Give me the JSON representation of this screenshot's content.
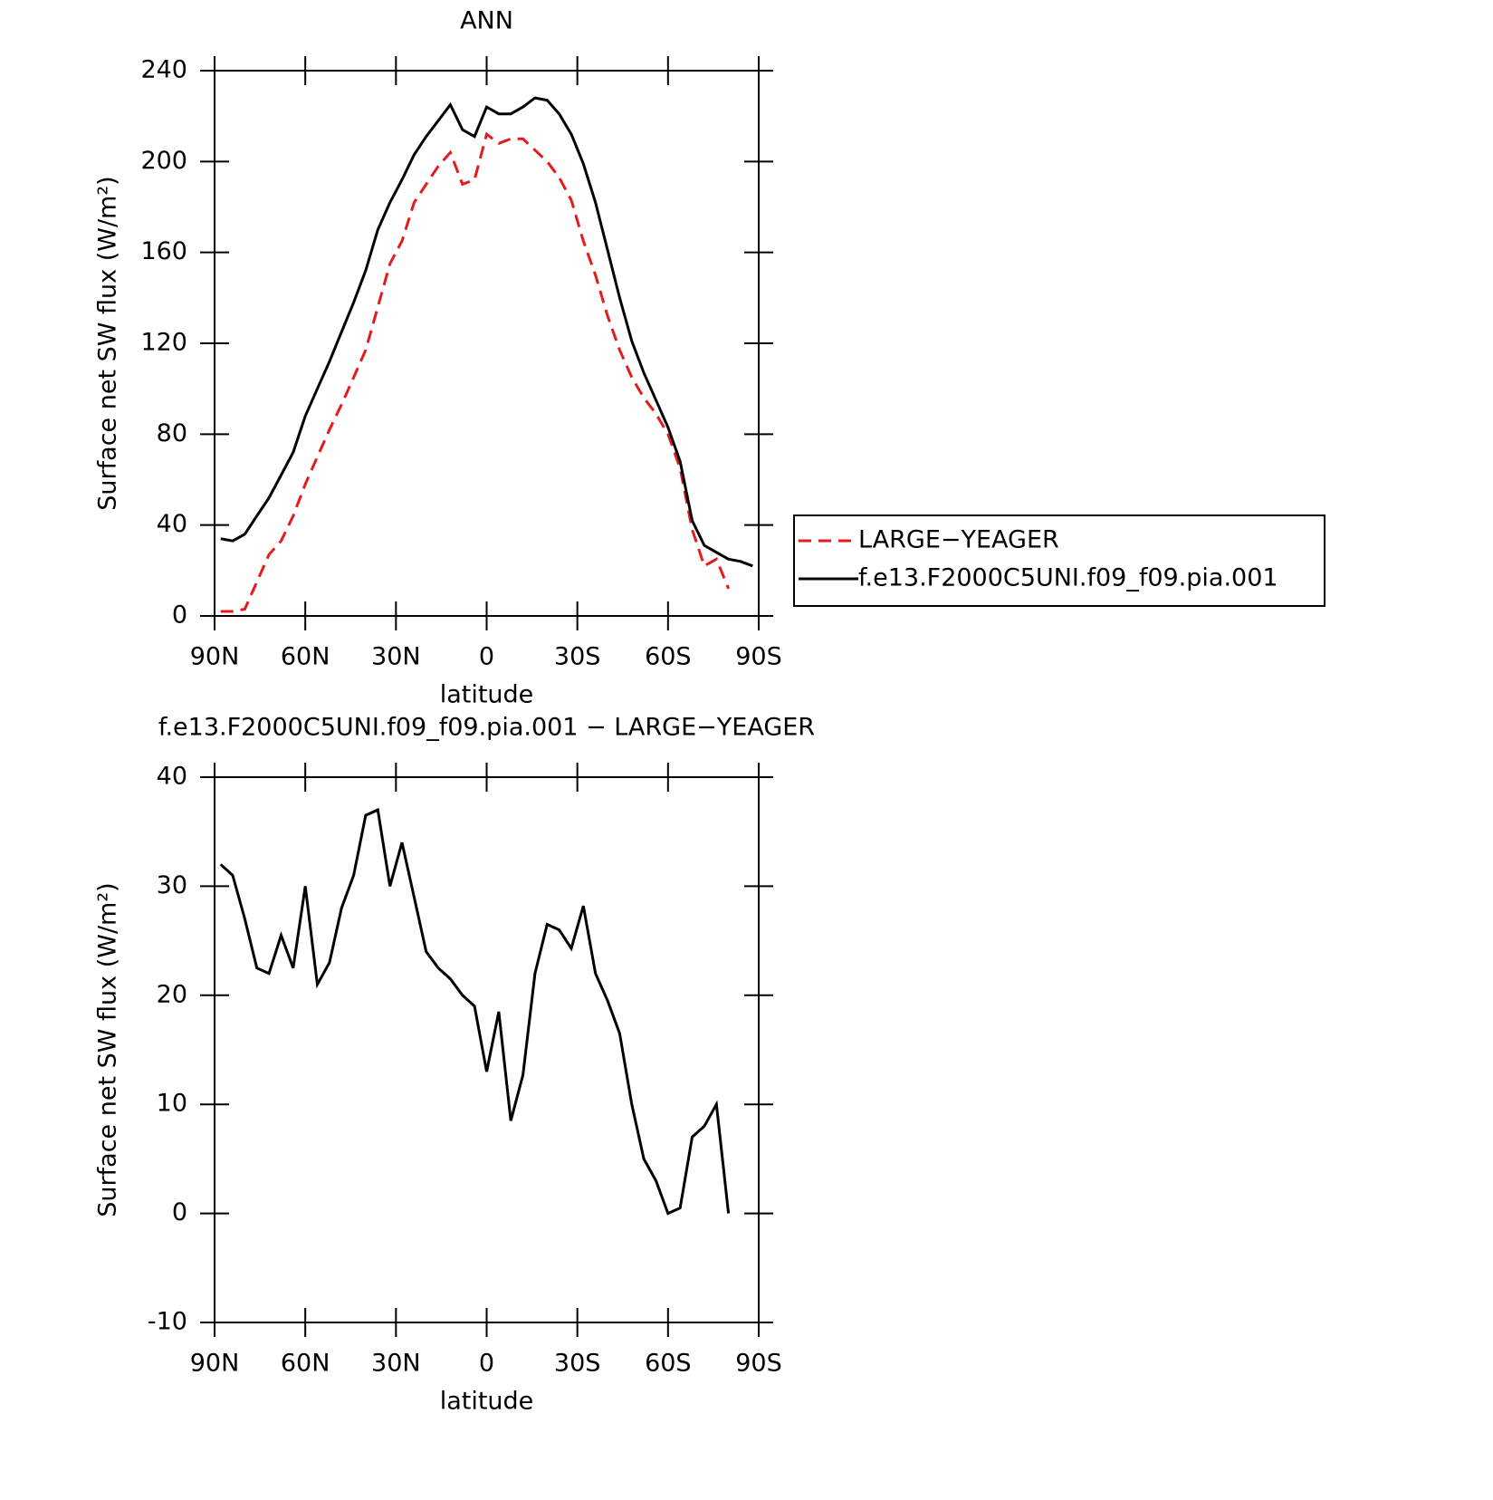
{
  "chart_data": [
    {
      "type": "line",
      "title": "ANN",
      "xlabel": "latitude",
      "ylabel": "Surface net SW flux (W/m²)",
      "x": [
        88,
        84,
        80,
        76,
        72,
        68,
        64,
        60,
        56,
        52,
        48,
        44,
        40,
        36,
        32,
        28,
        24,
        20,
        16,
        12,
        8,
        4,
        0,
        -4,
        -8,
        -12,
        -16,
        -20,
        -24,
        -28,
        -32,
        -36,
        -40,
        -44,
        -48,
        -52,
        -56,
        -60,
        -64,
        -68,
        -72,
        -76,
        -80,
        -84,
        -88
      ],
      "series": [
        {
          "name": "LARGE−YEAGER",
          "color": "#e41a1c",
          "linestyle": "dashed",
          "values": [
            2,
            2,
            3,
            15,
            27,
            33,
            44,
            58,
            70,
            82,
            93,
            105,
            117,
            136,
            155,
            165,
            182,
            190,
            198,
            204,
            190,
            192,
            212,
            208,
            210,
            210,
            205,
            200,
            193,
            183,
            165,
            150,
            132,
            117,
            105,
            96,
            89,
            80,
            65,
            38,
            22,
            25,
            12,
            null,
            null
          ]
        },
        {
          "name": "f.e13.F2000C5UNI.f09_f09.pia.001",
          "color": "#000000",
          "linestyle": "solid",
          "values": [
            34,
            33,
            36,
            44,
            52,
            62,
            72,
            88,
            100,
            112,
            125,
            138,
            152,
            170,
            182,
            192,
            203,
            211,
            218,
            225,
            214,
            211,
            224,
            221,
            221,
            224,
            228,
            227,
            221,
            212,
            199,
            182,
            161,
            140,
            121,
            107,
            95,
            83,
            68,
            42,
            31,
            28,
            25,
            24,
            22
          ]
        }
      ],
      "xlim": [
        90,
        -90
      ],
      "xticks": [
        {
          "value": 90,
          "label": "90N"
        },
        {
          "value": 60,
          "label": "60N"
        },
        {
          "value": 30,
          "label": "30N"
        },
        0,
        {
          "value": -30,
          "label": "30S"
        },
        {
          "value": -60,
          "label": "60S"
        },
        {
          "value": -90,
          "label": "90S"
        }
      ],
      "ylim": [
        0,
        240
      ],
      "yticks": [
        0,
        40,
        80,
        120,
        160,
        200,
        240
      ],
      "legend": "right"
    },
    {
      "type": "line",
      "title": "f.e13.F2000C5UNI.f09_f09.pia.001 − LARGE−YEAGER",
      "xlabel": "latitude",
      "ylabel": "Surface net SW flux (W/m²)",
      "x": [
        88,
        84,
        80,
        76,
        72,
        68,
        64,
        60,
        56,
        52,
        48,
        44,
        40,
        36,
        32,
        28,
        24,
        20,
        16,
        12,
        8,
        4,
        0,
        -4,
        -8,
        -12,
        -16,
        -20,
        -24,
        -28,
        -32,
        -36,
        -40,
        -44,
        -48,
        -52,
        -56,
        -60,
        -64,
        -68,
        -72,
        -76,
        -80,
        -84,
        -88
      ],
      "values": [
        32,
        31,
        27,
        22.5,
        22,
        25.5,
        22.5,
        30,
        21,
        23,
        28,
        31,
        36.5,
        37,
        30,
        34,
        29,
        24,
        22.5,
        21.5,
        20,
        19,
        13,
        18.5,
        8.5,
        12.7,
        22,
        26.5,
        26,
        24.3,
        28.2,
        22,
        19.5,
        16.5,
        10,
        5,
        3,
        0,
        0.5,
        7,
        8,
        10,
        0,
        null,
        null
      ],
      "color": "#000000",
      "xlim": [
        90,
        -90
      ],
      "xticks": [
        {
          "value": 90,
          "label": "90N"
        },
        {
          "value": 60,
          "label": "60N"
        },
        {
          "value": 30,
          "label": "30N"
        },
        0,
        {
          "value": -30,
          "label": "30S"
        },
        {
          "value": -60,
          "label": "60S"
        },
        {
          "value": -90,
          "label": "90S"
        }
      ],
      "ylim": [
        -10,
        40
      ],
      "yticks": [
        -10,
        0,
        10,
        20,
        30,
        40
      ]
    }
  ]
}
